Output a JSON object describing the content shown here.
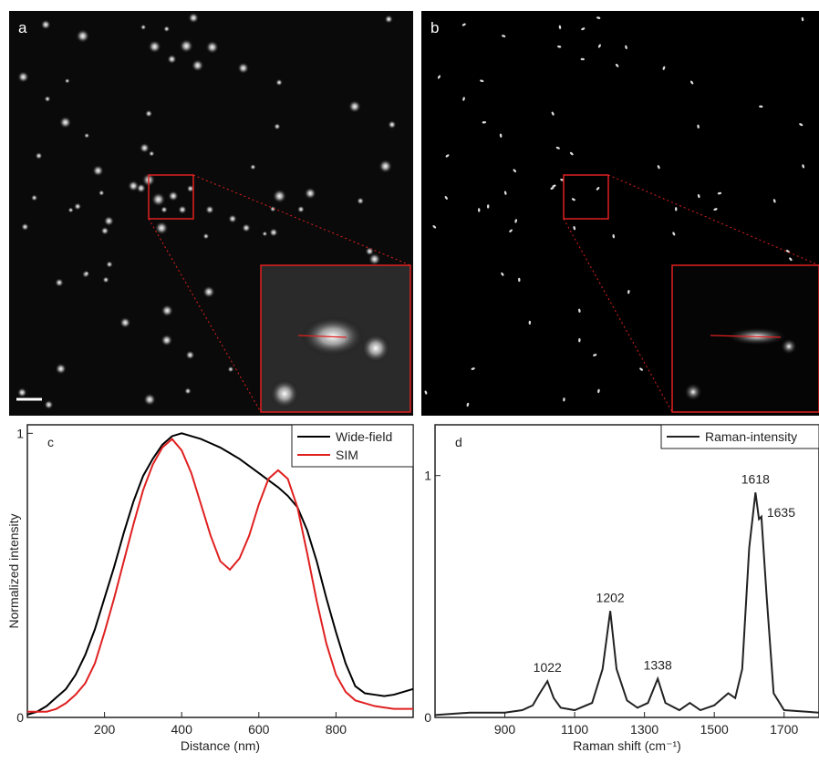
{
  "panel_labels": [
    "a",
    "b"
  ],
  "chart_data": [
    {
      "type": "line",
      "panel_label": "c",
      "xlabel": "Distance (nm)",
      "ylabel": "Normalized intensity",
      "xlim": [
        0,
        1000
      ],
      "ylim": [
        0,
        1.03
      ],
      "xticks": [
        200,
        400,
        600,
        800
      ],
      "yticks": [
        0,
        1
      ],
      "legend": "top-right",
      "x": [
        0,
        25,
        50,
        75,
        100,
        125,
        150,
        175,
        200,
        225,
        250,
        275,
        300,
        325,
        350,
        375,
        400,
        425,
        450,
        475,
        500,
        525,
        550,
        575,
        600,
        625,
        650,
        675,
        700,
        725,
        750,
        775,
        800,
        825,
        850,
        875,
        900,
        925,
        950,
        975,
        1000
      ],
      "series": [
        {
          "name": "Wide-field",
          "color": "#000000",
          "values": [
            0.01,
            0.02,
            0.04,
            0.07,
            0.1,
            0.15,
            0.22,
            0.31,
            0.42,
            0.53,
            0.65,
            0.76,
            0.85,
            0.91,
            0.96,
            0.99,
            1.0,
            0.99,
            0.98,
            0.965,
            0.95,
            0.93,
            0.91,
            0.885,
            0.86,
            0.835,
            0.81,
            0.78,
            0.74,
            0.66,
            0.55,
            0.42,
            0.3,
            0.19,
            0.11,
            0.085,
            0.08,
            0.075,
            0.08,
            0.09,
            0.1
          ]
        },
        {
          "name": "SIM",
          "color": "#e02020",
          "values": [
            0.02,
            0.02,
            0.02,
            0.03,
            0.05,
            0.08,
            0.12,
            0.19,
            0.3,
            0.42,
            0.55,
            0.68,
            0.8,
            0.89,
            0.95,
            0.98,
            0.94,
            0.86,
            0.75,
            0.64,
            0.55,
            0.52,
            0.56,
            0.64,
            0.75,
            0.84,
            0.87,
            0.84,
            0.74,
            0.58,
            0.41,
            0.26,
            0.15,
            0.09,
            0.06,
            0.05,
            0.04,
            0.035,
            0.03,
            0.03,
            0.03
          ]
        }
      ]
    },
    {
      "type": "line",
      "panel_label": "d",
      "xlabel": "Raman shift (cm⁻¹)",
      "xlim": [
        700,
        1800
      ],
      "ylim": [
        0,
        1.21
      ],
      "xticks": [
        900,
        1100,
        1300,
        1500,
        1700
      ],
      "yticks": [
        0,
        1
      ],
      "legend": "top-right",
      "x": [
        700,
        800,
        900,
        950,
        980,
        1000,
        1022,
        1040,
        1060,
        1100,
        1150,
        1180,
        1202,
        1220,
        1250,
        1280,
        1310,
        1338,
        1360,
        1400,
        1430,
        1460,
        1500,
        1540,
        1560,
        1580,
        1600,
        1618,
        1628,
        1635,
        1650,
        1670,
        1700,
        1800
      ],
      "series": [
        {
          "name": "Raman-intensity",
          "color": "#222222",
          "values": [
            0.01,
            0.02,
            0.02,
            0.03,
            0.05,
            0.1,
            0.15,
            0.08,
            0.04,
            0.03,
            0.06,
            0.2,
            0.44,
            0.2,
            0.07,
            0.04,
            0.06,
            0.16,
            0.06,
            0.03,
            0.06,
            0.03,
            0.05,
            0.1,
            0.08,
            0.2,
            0.7,
            0.93,
            0.82,
            0.83,
            0.5,
            0.1,
            0.03,
            0.02
          ]
        }
      ],
      "annotations": [
        {
          "text": "1022",
          "x": 1022,
          "y": 0.15
        },
        {
          "text": "1202",
          "x": 1202,
          "y": 0.44
        },
        {
          "text": "1338",
          "x": 1338,
          "y": 0.16
        },
        {
          "text": "1618",
          "x": 1618,
          "y": 0.93
        },
        {
          "text": "1635",
          "x": 1635,
          "y": 0.83
        }
      ]
    }
  ]
}
